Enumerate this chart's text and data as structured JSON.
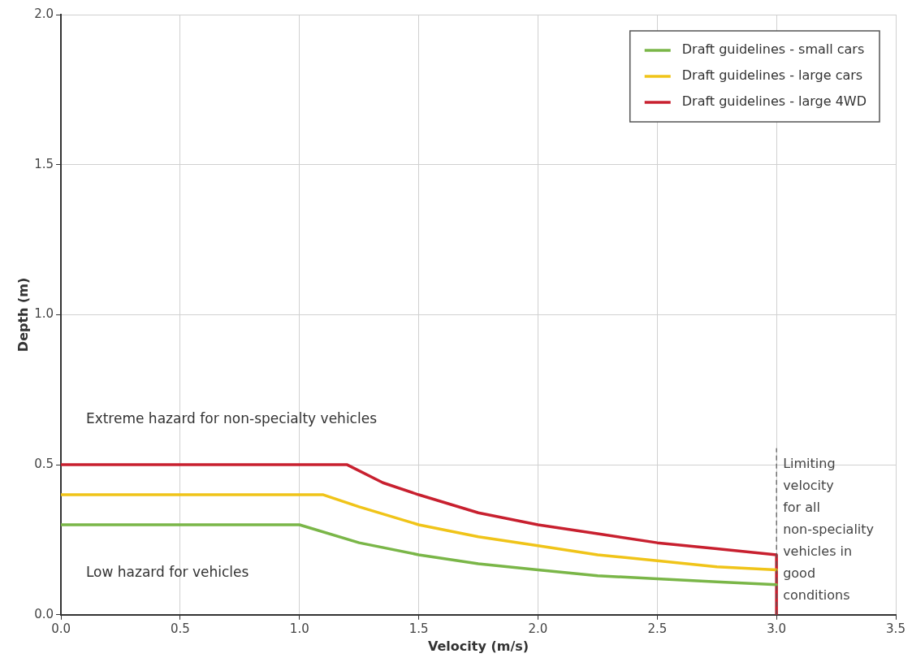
{
  "chart_data": {
    "type": "line",
    "xlabel": "Velocity (m/s)",
    "ylabel": "Depth (m)",
    "xlim": [
      0,
      3.5
    ],
    "xticks": [
      {
        "value": 0,
        "label": "0.0"
      },
      0.5,
      {
        "value": 1,
        "label": "1.0"
      },
      1.5,
      {
        "value": 2,
        "label": "2.0"
      },
      2.5,
      {
        "value": 3,
        "label": "3.0"
      },
      3.5
    ],
    "ylim": [
      0,
      2
    ],
    "yticks": [
      {
        "value": 0,
        "label": "0.0"
      },
      0.5,
      {
        "value": 1,
        "label": "1.0"
      },
      1.5,
      {
        "value": 2,
        "label": "2.0"
      }
    ],
    "grid": true,
    "legend": "top right",
    "marker": "none",
    "line_style": "solid",
    "series": [
      {
        "name": "Draft guidelines - small cars",
        "color": "#7ab648",
        "x": [
          0,
          1.0,
          1.25,
          1.5,
          1.75,
          2.0,
          2.25,
          2.5,
          2.75,
          3.0
        ],
        "values": [
          0.3,
          0.3,
          0.24,
          0.2,
          0.17,
          0.15,
          0.13,
          0.12,
          0.11,
          0.1
        ]
      },
      {
        "name": "Draft guidelines - large cars",
        "color": "#f0c419",
        "x": [
          0,
          1.1,
          1.25,
          1.5,
          1.75,
          2.0,
          2.25,
          2.5,
          2.75,
          3.0
        ],
        "values": [
          0.4,
          0.4,
          0.36,
          0.3,
          0.26,
          0.23,
          0.2,
          0.18,
          0.16,
          0.15
        ]
      },
      {
        "name": "Draft guidelines - large 4WD",
        "color": "#c8202f",
        "x": [
          0,
          1.2,
          1.35,
          1.5,
          1.75,
          2.0,
          2.25,
          2.5,
          2.75,
          3.0,
          3.0
        ],
        "values": [
          0.5,
          0.5,
          0.44,
          0.4,
          0.34,
          0.3,
          0.27,
          0.24,
          0.22,
          0.2,
          0
        ]
      }
    ],
    "ref_lines": [
      {
        "axis": "x",
        "value": 3.0,
        "label": "Limiting velocity for all non-speciality vehicles in good conditions",
        "color": "#555555",
        "line_style": "dashed"
      }
    ],
    "annotations": [
      "Extreme hazard for non-specialty vehicles",
      "Low hazard for vehicles"
    ]
  }
}
